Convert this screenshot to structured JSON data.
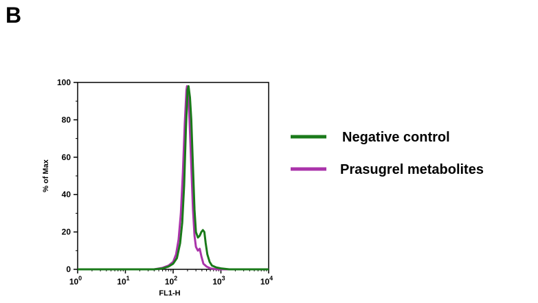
{
  "panel_label": "B",
  "chart_data": {
    "type": "line",
    "xlabel": "FL1-H",
    "ylabel": "% of Max",
    "xscale": "log",
    "xlim": [
      1,
      10000
    ],
    "ylim": [
      0,
      100
    ],
    "x_ticks": [
      {
        "value": 1,
        "base": "10",
        "exp": "0"
      },
      {
        "value": 10,
        "base": "10",
        "exp": "1"
      },
      {
        "value": 100,
        "base": "10",
        "exp": "2"
      },
      {
        "value": 1000,
        "base": "10",
        "exp": "3"
      },
      {
        "value": 10000,
        "base": "10",
        "exp": "4"
      }
    ],
    "y_ticks": [
      "0",
      "20",
      "40",
      "60",
      "80",
      "100"
    ],
    "legend_position": "right",
    "series": [
      {
        "name": "Negative control",
        "color": "#1a7a1a",
        "points": [
          [
            1,
            0
          ],
          [
            40,
            0
          ],
          [
            60,
            0.5
          ],
          [
            80,
            1.5
          ],
          [
            100,
            3
          ],
          [
            120,
            6
          ],
          [
            140,
            14
          ],
          [
            155,
            25
          ],
          [
            170,
            45
          ],
          [
            185,
            75
          ],
          [
            200,
            96
          ],
          [
            210,
            98
          ],
          [
            225,
            92
          ],
          [
            240,
            80
          ],
          [
            260,
            55
          ],
          [
            280,
            32
          ],
          [
            300,
            20
          ],
          [
            330,
            17
          ],
          [
            360,
            18
          ],
          [
            390,
            20
          ],
          [
            420,
            21
          ],
          [
            450,
            20
          ],
          [
            480,
            14
          ],
          [
            520,
            8
          ],
          [
            580,
            4
          ],
          [
            650,
            2
          ],
          [
            800,
            1
          ],
          [
            1000,
            0.5
          ],
          [
            1500,
            0
          ],
          [
            10000,
            0
          ]
        ]
      },
      {
        "name": "Prasugrel metabolites",
        "color": "#aa33aa",
        "points": [
          [
            1,
            0
          ],
          [
            40,
            0
          ],
          [
            60,
            0.8
          ],
          [
            80,
            2
          ],
          [
            100,
            4
          ],
          [
            115,
            8
          ],
          [
            130,
            16
          ],
          [
            145,
            30
          ],
          [
            160,
            52
          ],
          [
            175,
            78
          ],
          [
            190,
            96
          ],
          [
            195,
            98
          ],
          [
            205,
            95
          ],
          [
            220,
            80
          ],
          [
            240,
            55
          ],
          [
            260,
            32
          ],
          [
            280,
            18
          ],
          [
            300,
            12
          ],
          [
            330,
            10
          ],
          [
            360,
            11
          ],
          [
            390,
            7
          ],
          [
            430,
            3
          ],
          [
            500,
            1.5
          ],
          [
            600,
            0.5
          ],
          [
            800,
            0
          ],
          [
            10000,
            0
          ]
        ]
      }
    ]
  }
}
